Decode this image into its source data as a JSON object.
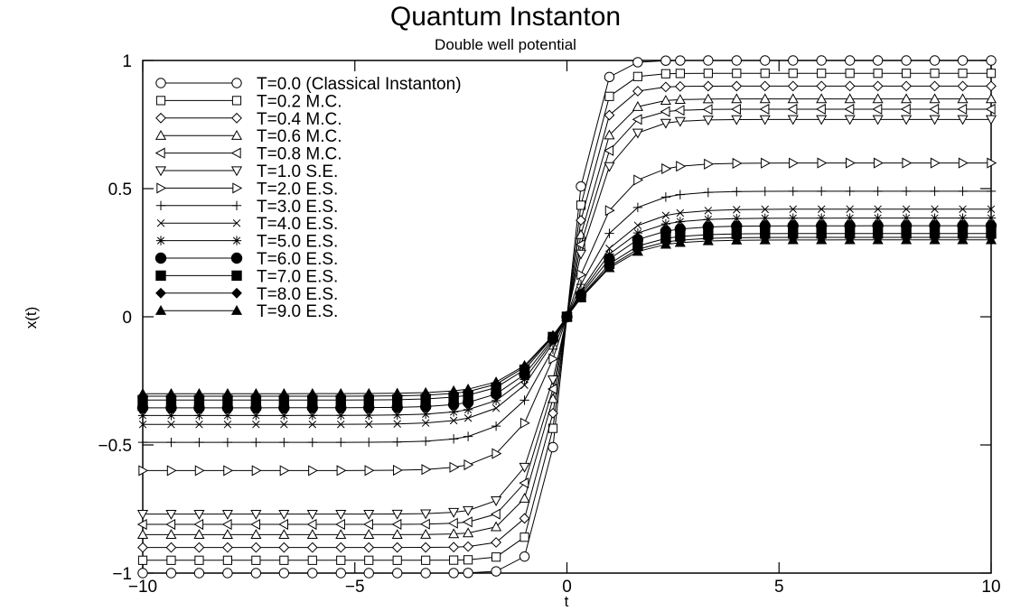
{
  "chart_data": {
    "type": "line",
    "title": "Quantum Instanton",
    "subtitle": "Double well potential",
    "xlabel": "t",
    "ylabel": "x(t)",
    "xlim": [
      -10,
      10
    ],
    "ylim": [
      -1,
      1
    ],
    "xticks": [
      -10,
      -5,
      0,
      5,
      10
    ],
    "yticks": [
      -1,
      -0.5,
      0,
      0.5,
      1
    ],
    "xtick_labels": [
      "−10",
      "−5",
      "0",
      "5",
      "10"
    ],
    "ytick_labels": [
      "−1",
      "−0.5",
      "0",
      "0.5",
      "1"
    ],
    "grid": false,
    "legend_position": "top-left",
    "x": [
      -10,
      -9.33,
      -8.67,
      -8,
      -7.33,
      -6.67,
      -6,
      -5.33,
      -4.67,
      -4,
      -3.33,
      -2.67,
      -2.33,
      -1.67,
      -1,
      -0.33,
      0,
      0.33,
      1,
      1.67,
      2.33,
      2.67,
      3.33,
      4,
      4.67,
      5.33,
      6,
      6.67,
      7.33,
      8,
      8.67,
      9.33,
      10
    ],
    "series": [
      {
        "name": "T=0.0 (Classical Instanton)",
        "marker": "circle-open",
        "color": "#000000",
        "amplitude": 1.0,
        "rate": 1.7
      },
      {
        "name": "T=0.2 M.C.",
        "marker": "square-open",
        "color": "#000000",
        "amplitude": 0.95,
        "rate": 1.5
      },
      {
        "name": "T=0.4 M.C.",
        "marker": "diamond-open",
        "color": "#000000",
        "amplitude": 0.9,
        "rate": 1.35
      },
      {
        "name": "T=0.6 M.C.",
        "marker": "triangle-up-open",
        "color": "#000000",
        "amplitude": 0.85,
        "rate": 1.2
      },
      {
        "name": "T=0.8 M.C.",
        "marker": "triangle-left-open",
        "color": "#000000",
        "amplitude": 0.81,
        "rate": 1.1
      },
      {
        "name": "T=1.0 S.E.",
        "marker": "triangle-down-open",
        "color": "#000000",
        "amplitude": 0.77,
        "rate": 1.0
      },
      {
        "name": "T=2.0 E.S.",
        "marker": "triangle-right-open",
        "color": "#000000",
        "amplitude": 0.6,
        "rate": 0.85
      },
      {
        "name": "T=3.0 E.S.",
        "marker": "plus",
        "color": "#000000",
        "amplitude": 0.49,
        "rate": 0.8
      },
      {
        "name": "T=4.0 E.S.",
        "marker": "cross",
        "color": "#000000",
        "amplitude": 0.42,
        "rate": 0.75
      },
      {
        "name": "T=5.0 E.S.",
        "marker": "asterisk",
        "color": "#000000",
        "amplitude": 0.385,
        "rate": 0.75
      },
      {
        "name": "T=6.0 E.S.",
        "marker": "circle-filled",
        "color": "#000000",
        "amplitude": 0.355,
        "rate": 0.75
      },
      {
        "name": "T=7.0 E.S.",
        "marker": "square-filled",
        "color": "#000000",
        "amplitude": 0.325,
        "rate": 0.75
      },
      {
        "name": "T=8.0 E.S.",
        "marker": "diamond-filled",
        "color": "#000000",
        "amplitude": 0.31,
        "rate": 0.75
      },
      {
        "name": "T=9.0 E.S.",
        "marker": "triangle-up-filled",
        "color": "#000000",
        "amplitude": 0.3,
        "rate": 0.75
      }
    ]
  }
}
